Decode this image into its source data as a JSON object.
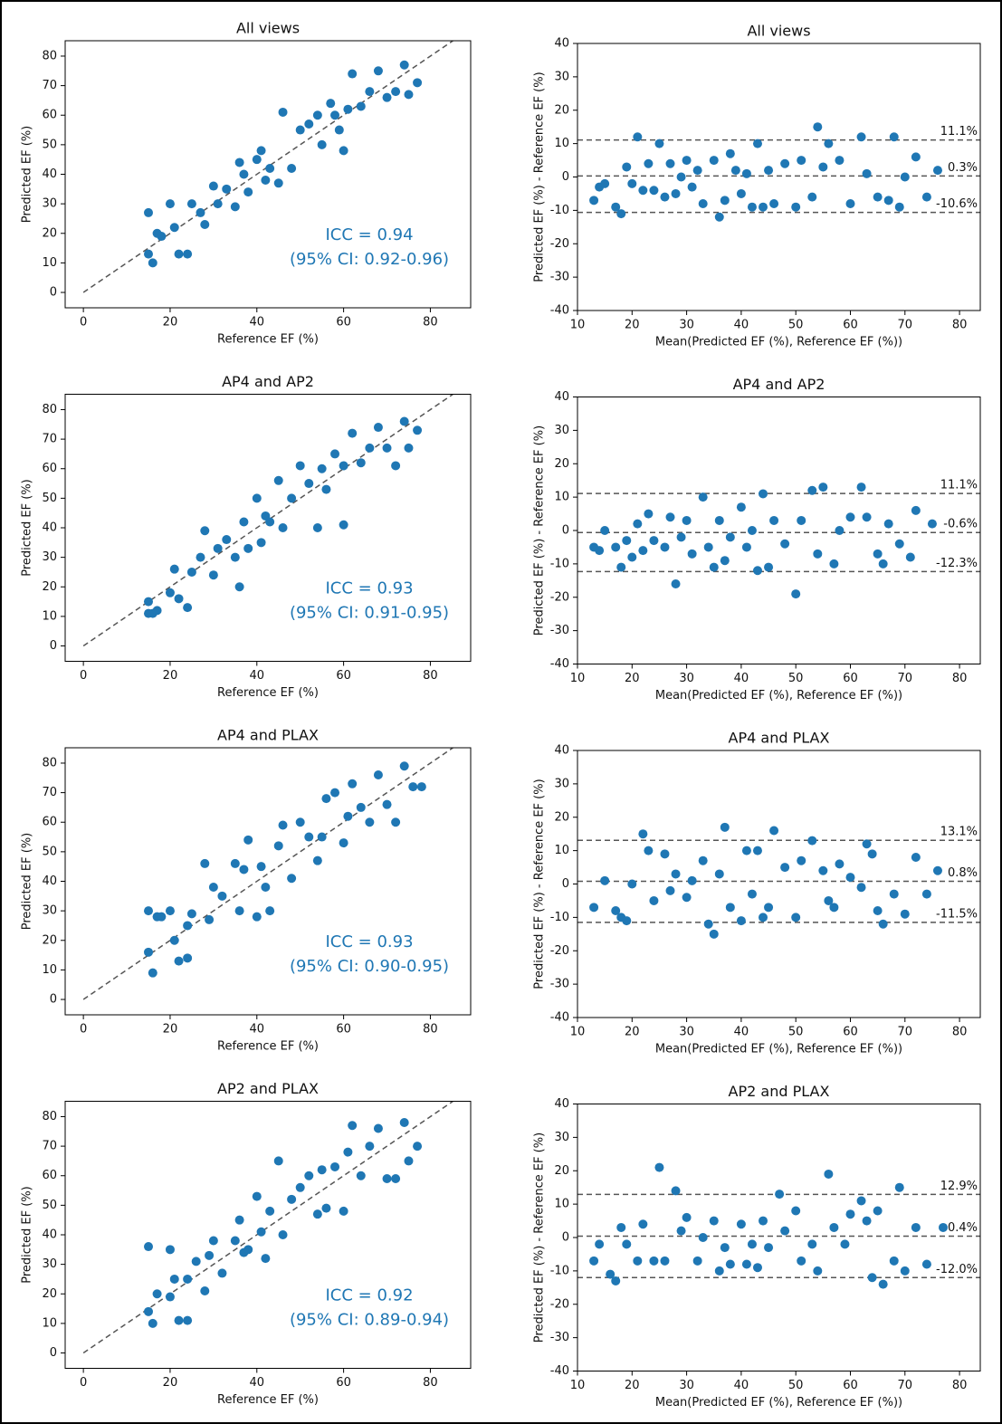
{
  "chart_data": [
    {
      "type": "scatter",
      "title": "All views",
      "x_label": "Reference EF (%)",
      "y_label": "Predicted EF (%)",
      "color": "#1f77b4",
      "identity_line": true,
      "xlim": [
        -4.2,
        89.3
      ],
      "xticks": [
        0,
        20,
        40,
        60,
        80
      ],
      "ylim": [
        -5.2,
        85.2
      ],
      "yticks": [
        0,
        10,
        20,
        30,
        40,
        50,
        60,
        70,
        80
      ],
      "annotations": [
        "ICC = 0.94",
        "(95% CI: 0.92-0.96)"
      ],
      "x": [
        15,
        15,
        16,
        17,
        18,
        20,
        21,
        22,
        24,
        25,
        27,
        28,
        30,
        31,
        33,
        35,
        36,
        37,
        38,
        40,
        41,
        42,
        43,
        45,
        46,
        48,
        50,
        52,
        54,
        55,
        57,
        58,
        59,
        60,
        61,
        62,
        64,
        66,
        68,
        70,
        72,
        74,
        75,
        77
      ],
      "values": [
        27,
        13,
        10,
        20,
        19,
        30,
        22,
        13,
        13,
        30,
        27,
        23,
        36,
        30,
        35,
        29,
        44,
        40,
        34,
        45,
        48,
        38,
        42,
        37,
        61,
        42,
        55,
        57,
        60,
        50,
        64,
        60,
        55,
        48,
        62,
        74,
        63,
        68,
        75,
        66,
        68,
        77,
        67,
        71
      ]
    },
    {
      "type": "scatter",
      "title": "All views",
      "x_label": "Mean(Predicted EF (%), Reference EF (%))",
      "y_label": "Predicted EF (%) - Reference EF (%)",
      "color": "#1f77b4",
      "xlim": [
        10,
        83.8
      ],
      "xticks": [
        10,
        20,
        30,
        40,
        50,
        60,
        70,
        80
      ],
      "ylim": [
        -40,
        40
      ],
      "yticks": [
        -40,
        -30,
        -20,
        -10,
        0,
        10,
        20,
        30,
        40
      ],
      "hlines": [
        {
          "value": 11.1,
          "label": "11.1%"
        },
        {
          "value": 0.3,
          "label": "0.3%"
        },
        {
          "value": -10.6,
          "label": "-10.6%"
        }
      ],
      "x": [
        13,
        14,
        15,
        17,
        18,
        19,
        20,
        21,
        22,
        23,
        24,
        25,
        26,
        27,
        28,
        29,
        30,
        31,
        32,
        33,
        35,
        36,
        37,
        38,
        39,
        40,
        41,
        42,
        43,
        44,
        45,
        46,
        48,
        50,
        51,
        53,
        54,
        55,
        56,
        58,
        60,
        62,
        63,
        65,
        67,
        68,
        69,
        70,
        72,
        74,
        76
      ],
      "values": [
        -7,
        -3,
        -2,
        -9,
        -11,
        3,
        -2,
        12,
        -4,
        4,
        -4,
        10,
        -6,
        4,
        -5,
        0,
        5,
        -3,
        2,
        -8,
        5,
        -12,
        -7,
        7,
        2,
        -5,
        1,
        -9,
        10,
        -9,
        2,
        -8,
        4,
        -9,
        5,
        -6,
        15,
        3,
        10,
        5,
        -8,
        12,
        1,
        -6,
        -7,
        12,
        -9,
        0,
        6,
        -6,
        2
      ]
    },
    {
      "type": "scatter",
      "title": "AP4 and AP2",
      "x_label": "Reference EF (%)",
      "y_label": "Predicted EF (%)",
      "color": "#1f77b4",
      "identity_line": true,
      "xlim": [
        -4.2,
        89.3
      ],
      "xticks": [
        0,
        20,
        40,
        60,
        80
      ],
      "ylim": [
        -5.2,
        85.2
      ],
      "yticks": [
        0,
        10,
        20,
        30,
        40,
        50,
        60,
        70,
        80
      ],
      "annotations": [
        "ICC = 0.93",
        "(95% CI: 0.91-0.95)"
      ],
      "x": [
        15,
        15,
        16,
        17,
        20,
        21,
        22,
        24,
        25,
        27,
        28,
        30,
        31,
        33,
        35,
        36,
        37,
        38,
        40,
        41,
        42,
        43,
        45,
        46,
        48,
        50,
        52,
        54,
        55,
        56,
        58,
        60,
        60,
        62,
        64,
        66,
        68,
        70,
        72,
        74,
        75,
        77
      ],
      "values": [
        15,
        11,
        11,
        12,
        18,
        26,
        16,
        13,
        25,
        30,
        39,
        24,
        33,
        36,
        30,
        20,
        42,
        33,
        50,
        35,
        44,
        42,
        56,
        40,
        50,
        61,
        55,
        40,
        60,
        53,
        65,
        41,
        61,
        72,
        62,
        67,
        74,
        67,
        61,
        76,
        67,
        73
      ]
    },
    {
      "type": "scatter",
      "title": "AP4 and AP2",
      "x_label": "Mean(Predicted EF (%), Reference EF (%))",
      "y_label": "Predicted EF (%) - Reference EF (%)",
      "color": "#1f77b4",
      "xlim": [
        10,
        83.8
      ],
      "xticks": [
        10,
        20,
        30,
        40,
        50,
        60,
        70,
        80
      ],
      "ylim": [
        -40,
        40
      ],
      "yticks": [
        -40,
        -30,
        -20,
        -10,
        0,
        10,
        20,
        30,
        40
      ],
      "hlines": [
        {
          "value": 11.1,
          "label": "11.1%"
        },
        {
          "value": -0.6,
          "label": "-0.6%"
        },
        {
          "value": -12.3,
          "label": "-12.3%"
        }
      ],
      "x": [
        13,
        14,
        15,
        17,
        18,
        19,
        20,
        21,
        22,
        23,
        24,
        26,
        27,
        28,
        29,
        30,
        31,
        33,
        34,
        35,
        36,
        37,
        38,
        40,
        41,
        42,
        43,
        44,
        45,
        46,
        48,
        50,
        51,
        53,
        54,
        55,
        57,
        58,
        60,
        62,
        63,
        65,
        66,
        67,
        69,
        71,
        72,
        75
      ],
      "values": [
        -5,
        -6,
        0,
        -5,
        -11,
        -3,
        -8,
        2,
        -6,
        5,
        -3,
        -5,
        4,
        -16,
        -2,
        3,
        -7,
        10,
        -5,
        -11,
        3,
        -9,
        -2,
        7,
        -5,
        0,
        -12,
        11,
        -11,
        3,
        -4,
        -19,
        3,
        12,
        -7,
        13,
        -10,
        0,
        4,
        13,
        4,
        -7,
        -10,
        2,
        -4,
        -8,
        6,
        2
      ]
    },
    {
      "type": "scatter",
      "title": "AP4 and PLAX",
      "x_label": "Reference EF (%)",
      "y_label": "Predicted EF (%)",
      "color": "#1f77b4",
      "identity_line": true,
      "xlim": [
        -4.2,
        89.3
      ],
      "xticks": [
        0,
        20,
        40,
        60,
        80
      ],
      "ylim": [
        -5.2,
        85.2
      ],
      "yticks": [
        0,
        10,
        20,
        30,
        40,
        50,
        60,
        70,
        80
      ],
      "annotations": [
        "ICC = 0.93",
        "(95% CI: 0.90-0.95)"
      ],
      "x": [
        15,
        15,
        16,
        17,
        18,
        20,
        21,
        22,
        24,
        24,
        25,
        28,
        29,
        30,
        32,
        35,
        36,
        37,
        38,
        40,
        41,
        42,
        43,
        45,
        46,
        48,
        50,
        52,
        54,
        55,
        56,
        58,
        60,
        61,
        62,
        64,
        66,
        68,
        70,
        72,
        74,
        76,
        78
      ],
      "values": [
        30,
        16,
        9,
        28,
        28,
        30,
        20,
        13,
        14,
        25,
        29,
        46,
        27,
        38,
        35,
        46,
        30,
        44,
        54,
        28,
        45,
        38,
        30,
        52,
        59,
        41,
        60,
        55,
        47,
        55,
        68,
        70,
        53,
        62,
        73,
        65,
        60,
        76,
        66,
        60,
        79,
        72,
        72
      ]
    },
    {
      "type": "scatter",
      "title": "AP4 and PLAX",
      "x_label": "Mean(Predicted EF (%), Reference EF (%))",
      "y_label": "Predicted EF (%) - Reference EF (%)",
      "color": "#1f77b4",
      "xlim": [
        10,
        83.8
      ],
      "xticks": [
        10,
        20,
        30,
        40,
        50,
        60,
        70,
        80
      ],
      "ylim": [
        -40,
        40
      ],
      "yticks": [
        -40,
        -30,
        -20,
        -10,
        0,
        10,
        20,
        30,
        40
      ],
      "hlines": [
        {
          "value": 13.1,
          "label": "13.1%"
        },
        {
          "value": 0.8,
          "label": "0.8%"
        },
        {
          "value": -11.5,
          "label": "-11.5%"
        }
      ],
      "x": [
        13,
        15,
        17,
        18,
        19,
        20,
        22,
        23,
        24,
        26,
        27,
        28,
        30,
        31,
        33,
        34,
        35,
        36,
        37,
        38,
        40,
        41,
        42,
        43,
        44,
        45,
        46,
        48,
        50,
        51,
        53,
        55,
        56,
        57,
        58,
        60,
        62,
        63,
        64,
        65,
        66,
        68,
        70,
        72,
        74,
        76
      ],
      "values": [
        -7,
        1,
        -8,
        -10,
        -11,
        0,
        15,
        10,
        -5,
        9,
        -2,
        3,
        -4,
        1,
        7,
        -12,
        -15,
        3,
        17,
        -7,
        -11,
        10,
        -3,
        10,
        -10,
        -7,
        16,
        5,
        -10,
        7,
        13,
        4,
        -5,
        -7,
        6,
        2,
        -1,
        12,
        9,
        -8,
        -12,
        -3,
        -9,
        8,
        -3,
        4
      ]
    },
    {
      "type": "scatter",
      "title": "AP2 and PLAX",
      "x_label": "Reference EF (%)",
      "y_label": "Predicted EF (%)",
      "color": "#1f77b4",
      "identity_line": true,
      "xlim": [
        -4.2,
        89.3
      ],
      "xticks": [
        0,
        20,
        40,
        60,
        80
      ],
      "ylim": [
        -5.2,
        85.2
      ],
      "yticks": [
        0,
        10,
        20,
        30,
        40,
        50,
        60,
        70,
        80
      ],
      "annotations": [
        "ICC = 0.92",
        "(95% CI: 0.89-0.94)"
      ],
      "x": [
        15,
        15,
        16,
        17,
        20,
        20,
        21,
        22,
        24,
        24,
        26,
        28,
        29,
        30,
        32,
        35,
        36,
        37,
        38,
        40,
        41,
        42,
        43,
        45,
        46,
        48,
        50,
        52,
        54,
        55,
        56,
        58,
        60,
        61,
        62,
        64,
        66,
        68,
        70,
        72,
        74,
        75,
        77
      ],
      "values": [
        36,
        14,
        10,
        20,
        35,
        19,
        25,
        11,
        11,
        25,
        31,
        21,
        33,
        38,
        27,
        38,
        45,
        34,
        35,
        53,
        41,
        32,
        48,
        65,
        40,
        52,
        56,
        60,
        47,
        62,
        49,
        63,
        48,
        68,
        77,
        60,
        70,
        76,
        59,
        59,
        78,
        65,
        70
      ]
    },
    {
      "type": "scatter",
      "title": "AP2 and PLAX",
      "x_label": "Mean(Predicted EF (%), Reference EF (%))",
      "y_label": "Predicted EF (%) - Reference EF (%)",
      "color": "#1f77b4",
      "xlim": [
        10,
        83.8
      ],
      "xticks": [
        10,
        20,
        30,
        40,
        50,
        60,
        70,
        80
      ],
      "ylim": [
        -40,
        40
      ],
      "yticks": [
        -40,
        -30,
        -20,
        -10,
        0,
        10,
        20,
        30,
        40
      ],
      "hlines": [
        {
          "value": 12.9,
          "label": "12.9%"
        },
        {
          "value": 0.4,
          "label": "0.4%"
        },
        {
          "value": -12,
          "label": "-12.0%"
        }
      ],
      "x": [
        13,
        14,
        16,
        17,
        18,
        19,
        21,
        22,
        24,
        25,
        26,
        28,
        29,
        30,
        32,
        33,
        35,
        36,
        37,
        38,
        40,
        41,
        42,
        43,
        44,
        45,
        47,
        48,
        50,
        51,
        53,
        54,
        56,
        57,
        59,
        60,
        62,
        63,
        64,
        65,
        66,
        68,
        69,
        70,
        72,
        74,
        77
      ],
      "values": [
        -7,
        -2,
        -11,
        -13,
        3,
        -2,
        -7,
        4,
        -7,
        21,
        -7,
        14,
        2,
        6,
        -7,
        0,
        5,
        -10,
        -3,
        -8,
        4,
        -8,
        -2,
        -9,
        5,
        -3,
        13,
        2,
        8,
        -7,
        -2,
        -10,
        19,
        3,
        -2,
        7,
        11,
        5,
        -12,
        8,
        -14,
        -7,
        15,
        -10,
        3,
        -8,
        3
      ]
    }
  ]
}
